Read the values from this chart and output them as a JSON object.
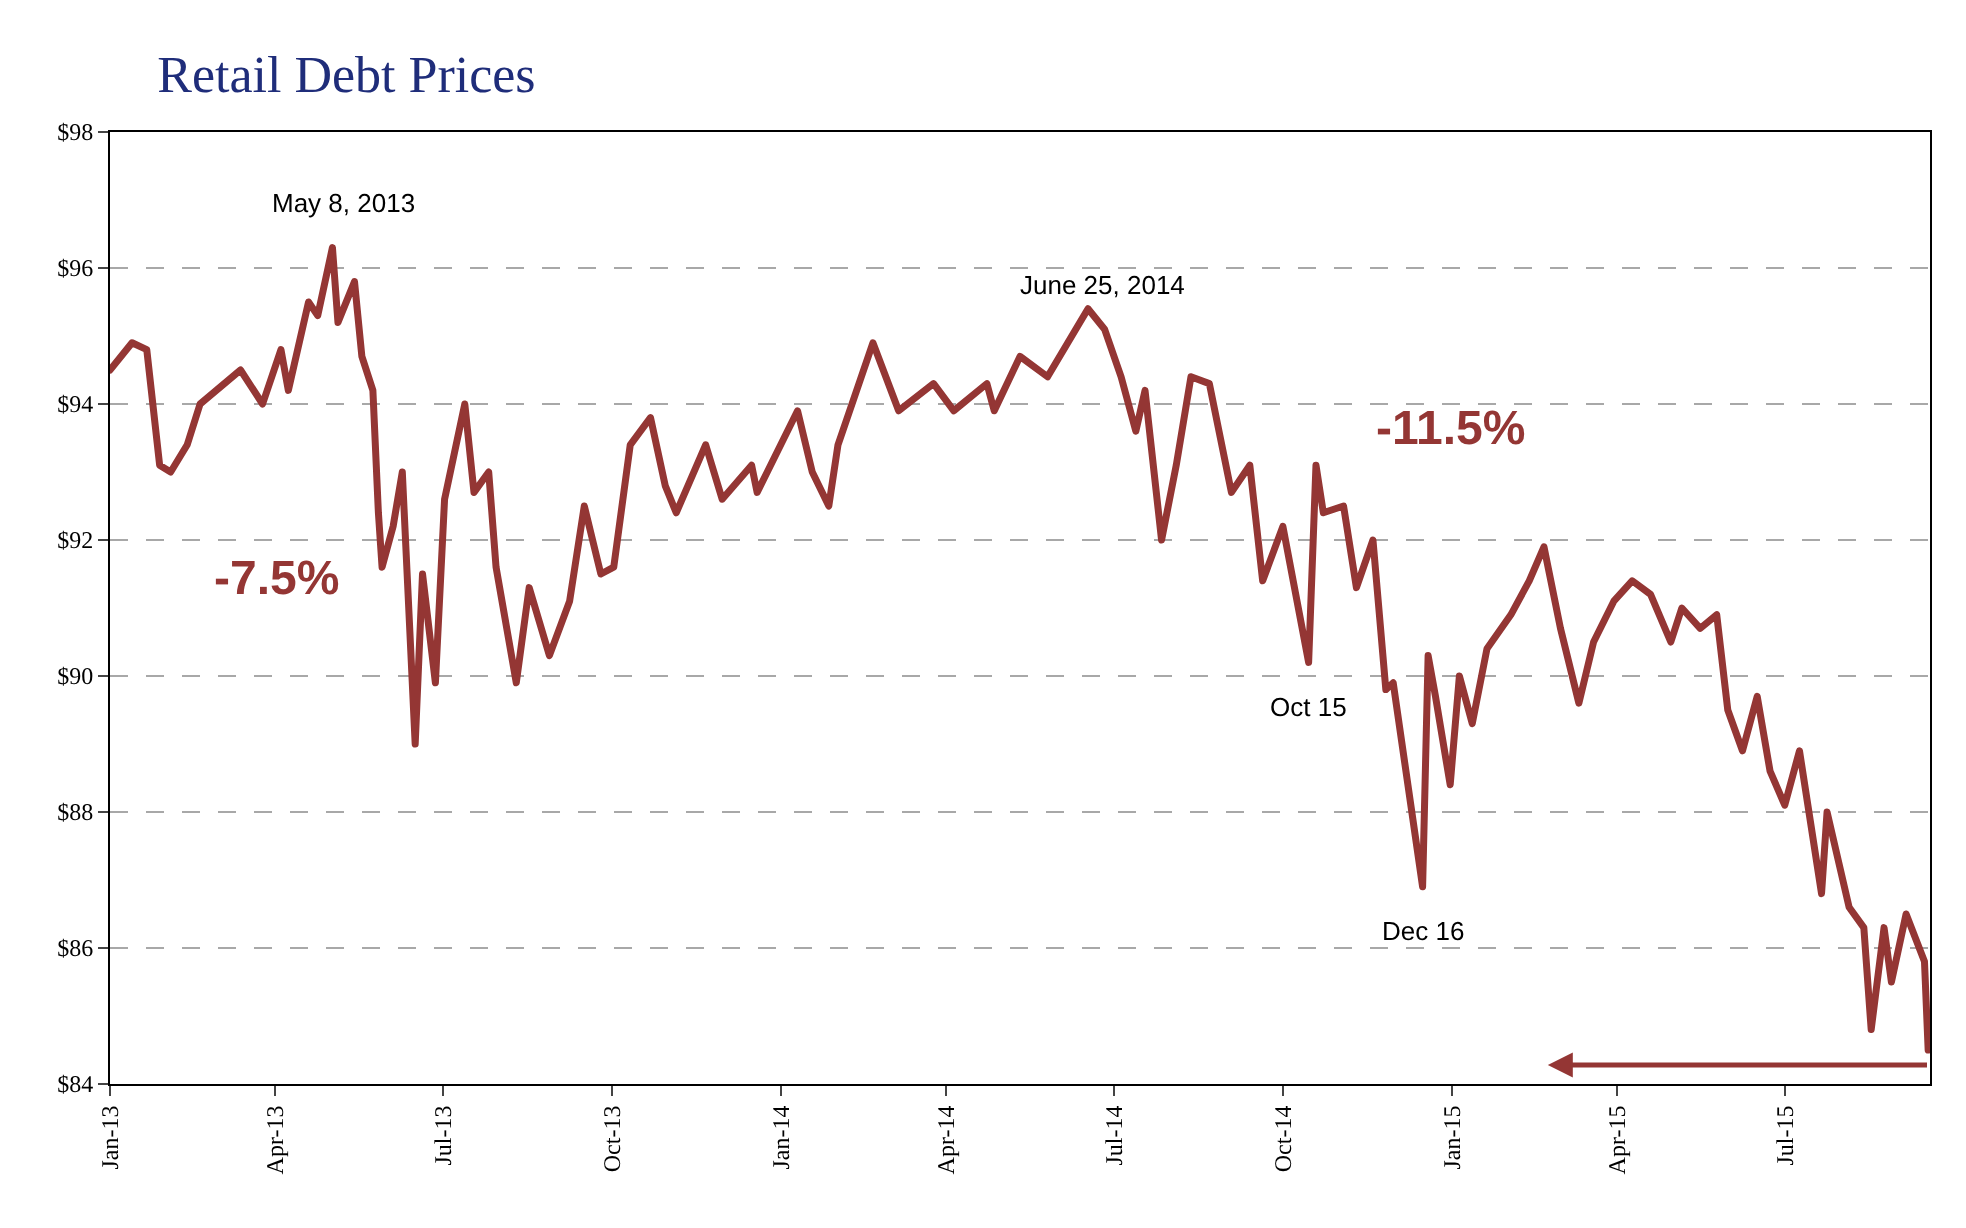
{
  "chart_data": {
    "type": "line",
    "title": "Retail Debt Prices",
    "x": [
      "2013-01-01",
      "2013-01-13",
      "2013-01-21",
      "2013-01-28",
      "2013-02-03",
      "2013-02-12",
      "2013-02-19",
      "2013-03-13",
      "2013-03-25",
      "2013-04-04",
      "2013-04-08",
      "2013-04-19",
      "2013-04-24",
      "2013-05-02",
      "2013-05-05",
      "2013-05-14",
      "2013-05-18",
      "2013-05-24",
      "2013-05-27",
      "2013-05-29",
      "2013-06-04",
      "2013-06-09",
      "2013-06-16",
      "2013-06-20",
      "2013-06-27",
      "2013-07-02",
      "2013-07-13",
      "2013-07-18",
      "2013-07-26",
      "2013-07-30",
      "2013-08-10",
      "2013-08-17",
      "2013-08-28",
      "2013-09-08",
      "2013-09-16",
      "2013-09-25",
      "2013-10-02",
      "2013-10-11",
      "2013-10-22",
      "2013-10-30",
      "2013-11-05",
      "2013-11-21",
      "2013-11-30",
      "2013-12-16",
      "2013-12-19",
      "2014-01-10",
      "2014-01-18",
      "2014-01-27",
      "2014-02-01",
      "2014-02-20",
      "2014-03-06",
      "2014-03-25",
      "2014-04-05",
      "2014-04-23",
      "2014-04-27",
      "2014-05-11",
      "2014-05-26",
      "2014-06-06",
      "2014-06-17",
      "2014-06-26",
      "2014-07-05",
      "2014-07-13",
      "2014-07-18",
      "2014-07-27",
      "2014-08-04",
      "2014-08-12",
      "2014-08-22",
      "2014-09-03",
      "2014-09-13",
      "2014-09-20",
      "2014-10-01",
      "2014-10-15",
      "2014-10-19",
      "2014-10-23",
      "2014-11-03",
      "2014-11-10",
      "2014-11-19",
      "2014-11-26",
      "2014-11-30",
      "2014-12-16",
      "2014-12-19",
      "2014-12-23",
      "2014-12-31",
      "2015-01-05",
      "2015-01-12",
      "2015-01-20",
      "2015-02-02",
      "2015-02-12",
      "2015-02-20",
      "2015-03-01",
      "2015-03-11",
      "2015-03-19",
      "2015-03-30",
      "2015-04-09",
      "2015-04-19",
      "2015-04-30",
      "2015-05-06",
      "2015-05-16",
      "2015-05-25",
      "2015-05-31",
      "2015-06-08",
      "2015-06-16",
      "2015-06-23",
      "2015-07-01",
      "2015-07-09",
      "2015-07-21",
      "2015-07-24",
      "2015-08-05",
      "2015-08-13",
      "2015-08-17",
      "2015-08-24",
      "2015-08-28",
      "2015-09-05",
      "2015-09-15",
      "2015-09-17"
    ],
    "series": [
      {
        "color": "#943634",
        "values": [
          94.5,
          94.9,
          94.8,
          93.1,
          93.0,
          93.4,
          94.0,
          94.5,
          94.0,
          94.8,
          94.2,
          95.5,
          95.3,
          96.3,
          95.2,
          95.8,
          94.7,
          94.2,
          92.4,
          91.6,
          92.2,
          93.0,
          89.0,
          91.5,
          89.9,
          92.6,
          94.0,
          92.7,
          93.0,
          91.6,
          89.9,
          91.3,
          90.3,
          91.1,
          92.5,
          91.5,
          91.6,
          93.4,
          93.8,
          92.8,
          92.4,
          93.4,
          92.6,
          93.1,
          92.7,
          93.9,
          93.0,
          92.5,
          93.4,
          94.9,
          93.9,
          94.3,
          93.9,
          94.3,
          93.9,
          94.7,
          94.4,
          94.9,
          95.4,
          95.1,
          94.4,
          93.6,
          94.2,
          92.0,
          93.1,
          94.4,
          94.3,
          92.7,
          93.1,
          91.4,
          92.2,
          90.2,
          93.1,
          92.4,
          92.5,
          91.3,
          92.0,
          89.8,
          89.9,
          86.9,
          90.3,
          89.7,
          88.4,
          90.0,
          89.3,
          90.4,
          90.9,
          91.4,
          91.9,
          90.7,
          89.6,
          90.5,
          91.1,
          91.4,
          91.2,
          90.5,
          91.0,
          90.7,
          90.9,
          89.5,
          88.9,
          89.7,
          88.6,
          88.1,
          88.9,
          86.8,
          88.0,
          86.6,
          86.3,
          84.8,
          86.3,
          85.5,
          86.5,
          85.8,
          84.5
        ]
      }
    ],
    "xlim": [
      "2013-01-01",
      "2015-09-18"
    ],
    "xticks": [
      {
        "value": "2013-01-01",
        "label": "Jan-13"
      },
      {
        "value": "2013-04-01",
        "label": "Apr-13"
      },
      {
        "value": "2013-07-01",
        "label": "Jul-13"
      },
      {
        "value": "2013-10-01",
        "label": "Oct-13"
      },
      {
        "value": "2014-01-01",
        "label": "Jan-14"
      },
      {
        "value": "2014-04-01",
        "label": "Apr-14"
      },
      {
        "value": "2014-07-01",
        "label": "Jul-14"
      },
      {
        "value": "2014-10-01",
        "label": "Oct-14"
      },
      {
        "value": "2015-01-01",
        "label": "Jan-15"
      },
      {
        "value": "2015-04-01",
        "label": "Apr-15"
      },
      {
        "value": "2015-07-01",
        "label": "Jul-15"
      }
    ],
    "ylim": [
      84,
      98
    ],
    "yticks": [
      {
        "value": 84,
        "label": "$84"
      },
      {
        "value": 86,
        "label": "$86"
      },
      {
        "value": 88,
        "label": "$88"
      },
      {
        "value": 90,
        "label": "$90"
      },
      {
        "value": 92,
        "label": "$92"
      },
      {
        "value": 94,
        "label": "$94"
      },
      {
        "value": 96,
        "label": "$96"
      },
      {
        "value": 98,
        "label": "$98"
      }
    ],
    "grid": "y",
    "line_style": "solid",
    "marker": "none",
    "annotations": [
      {
        "text": "May 8, 2013",
        "x": "2013-05-08",
        "y": 96.3
      },
      {
        "text": "June 25, 2014",
        "x": "2014-06-25",
        "y": 95.1
      },
      {
        "text": "Oct 15",
        "x": "2014-10-15",
        "y": 90.2
      },
      {
        "text": "Dec 16",
        "x": "2014-12-16",
        "y": 86.9
      },
      "-7.5%",
      "-11.5%"
    ]
  }
}
